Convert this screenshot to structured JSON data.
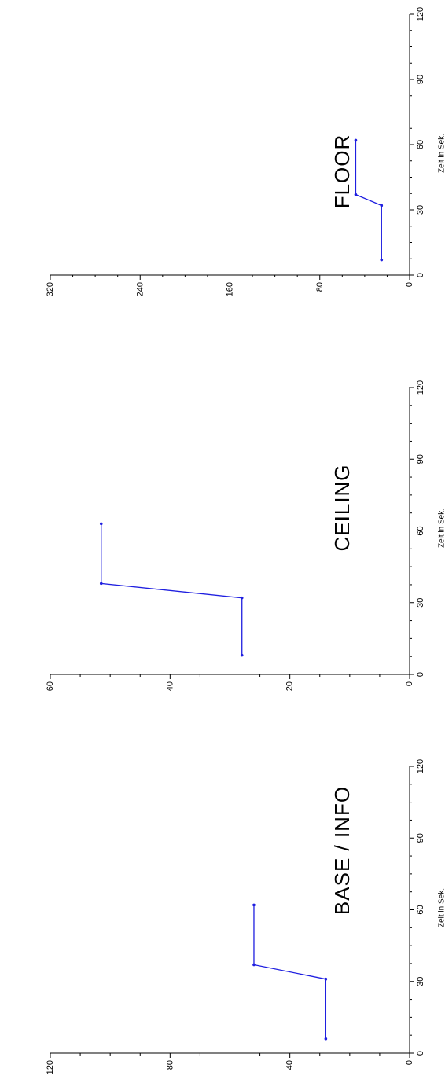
{
  "chart_data": [
    {
      "type": "line",
      "title": "FLOOR",
      "xlabel": "Zeit in Sek.",
      "ylabel": "",
      "xlim": [
        0,
        120
      ],
      "ylim": [
        0,
        320
      ],
      "x_ticks": [
        0,
        30,
        60,
        90,
        120
      ],
      "y_ticks": [
        0,
        80,
        160,
        240,
        320
      ],
      "grid": false,
      "series": [
        {
          "x": [
            7,
            32,
            37,
            62
          ],
          "values": [
            25,
            25,
            48,
            48
          ]
        }
      ]
    },
    {
      "type": "line",
      "title": "CEILING",
      "xlabel": "Zeit in Sek.",
      "ylabel": "",
      "xlim": [
        0,
        120
      ],
      "ylim": [
        0,
        60
      ],
      "x_ticks": [
        0,
        30,
        60,
        90,
        120
      ],
      "y_ticks": [
        0,
        20,
        40,
        60
      ],
      "grid": false,
      "series": [
        {
          "x": [
            8,
            32,
            38,
            63
          ],
          "values": [
            28,
            28,
            51.5,
            51.5
          ]
        }
      ]
    },
    {
      "type": "line",
      "title": "BASE / INFO",
      "xlabel": "Zeit in Sek.",
      "ylabel": "",
      "xlim": [
        0,
        120
      ],
      "ylim": [
        0,
        120
      ],
      "x_ticks": [
        0,
        30,
        60,
        90,
        120
      ],
      "y_ticks": [
        0,
        40,
        80,
        120
      ],
      "grid": false,
      "series": [
        {
          "x": [
            6,
            31,
            37,
            62
          ],
          "values": [
            28,
            28,
            52,
            52
          ]
        }
      ]
    }
  ],
  "colors": {
    "series": "#1f1fe0",
    "axis": "#000000",
    "background": "#ffffff"
  }
}
